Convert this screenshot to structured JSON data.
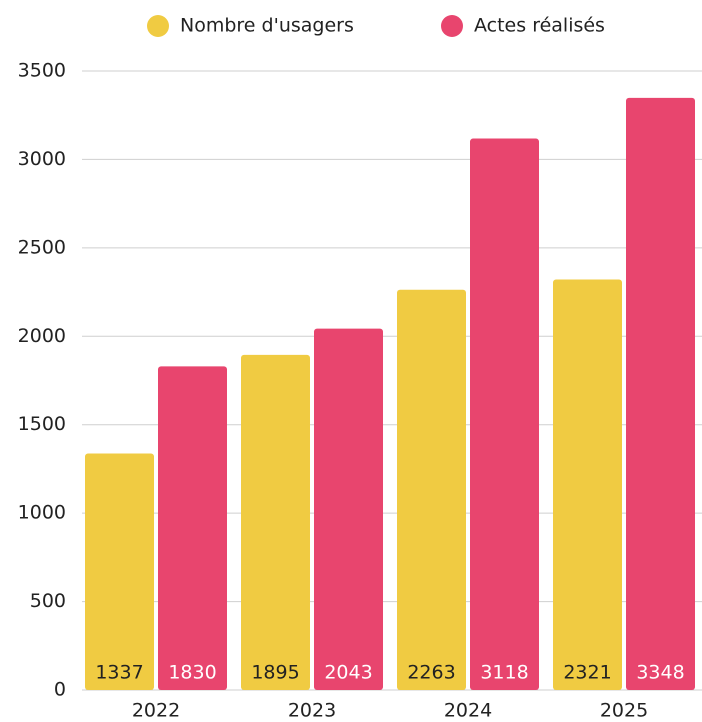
{
  "chart_data": {
    "type": "bar",
    "categories": [
      "2022",
      "2023",
      "2024",
      "2025"
    ],
    "series": [
      {
        "name": "Nombre d'usagers",
        "color": "#f0cb42",
        "values": [
          1337,
          1895,
          2263,
          2321
        ]
      },
      {
        "name": "Actes réalisés",
        "color": "#e8456e",
        "values": [
          1830,
          2043,
          3118,
          3348
        ]
      }
    ],
    "ylim": [
      0,
      3500
    ],
    "yticks": [
      0,
      500,
      1000,
      1500,
      2000,
      2500,
      3000,
      3500
    ],
    "grid": true,
    "legend": "top"
  }
}
